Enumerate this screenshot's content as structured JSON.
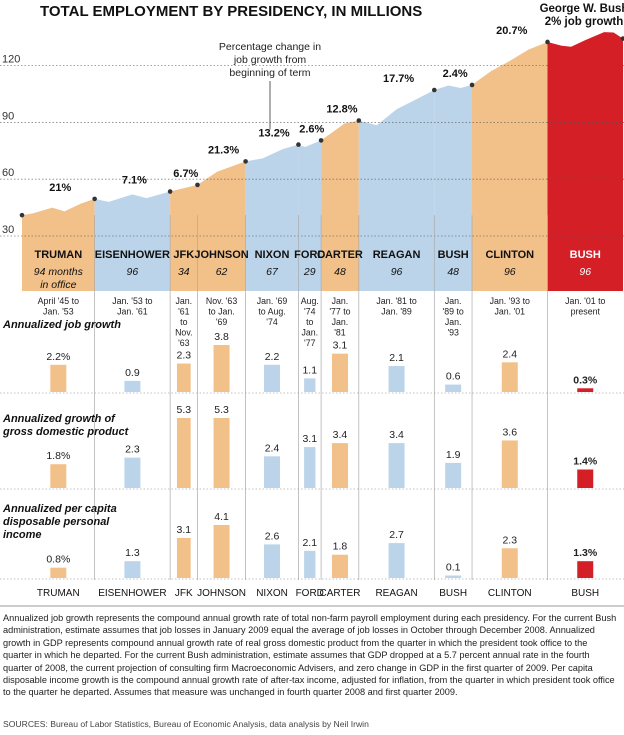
{
  "chart_data": {
    "type": "area",
    "title": "TOTAL EMPLOYMENT BY PRESIDENCY, IN MILLIONS",
    "annotation_top": "George W. Bush 2% job growth",
    "annotation_callout": "Percentage change in job growth from beginning of term",
    "y_ticks": [
      30,
      60,
      90,
      120
    ],
    "ylim": [
      24,
      140
    ],
    "employment_series": [
      {
        "date": 1945.3,
        "value": 41
      },
      {
        "date": 1946.5,
        "value": 42
      },
      {
        "date": 1948.5,
        "value": 45
      },
      {
        "date": 1949.8,
        "value": 43
      },
      {
        "date": 1951.5,
        "value": 47
      },
      {
        "date": 1953.0,
        "value": 49.6
      },
      {
        "date": 1954.5,
        "value": 48
      },
      {
        "date": 1957.0,
        "value": 52
      },
      {
        "date": 1958.5,
        "value": 50
      },
      {
        "date": 1961.0,
        "value": 53.5
      },
      {
        "date": 1963.9,
        "value": 57
      },
      {
        "date": 1966.0,
        "value": 64
      },
      {
        "date": 1969.0,
        "value": 69.4
      },
      {
        "date": 1970.8,
        "value": 71
      },
      {
        "date": 1973.0,
        "value": 76
      },
      {
        "date": 1974.6,
        "value": 78.3
      },
      {
        "date": 1975.3,
        "value": 77
      },
      {
        "date": 1977.0,
        "value": 80.5
      },
      {
        "date": 1979.5,
        "value": 89.5
      },
      {
        "date": 1981.0,
        "value": 91
      },
      {
        "date": 1982.9,
        "value": 88.5
      },
      {
        "date": 1985.0,
        "value": 97
      },
      {
        "date": 1987.0,
        "value": 102
      },
      {
        "date": 1989.0,
        "value": 107.1
      },
      {
        "date": 1990.5,
        "value": 109.5
      },
      {
        "date": 1991.8,
        "value": 108.2
      },
      {
        "date": 1993.0,
        "value": 109.8
      },
      {
        "date": 1995.0,
        "value": 117
      },
      {
        "date": 1997.0,
        "value": 122.5
      },
      {
        "date": 1999.0,
        "value": 128.5
      },
      {
        "date": 2001.0,
        "value": 132.5
      },
      {
        "date": 2002.5,
        "value": 130.5
      },
      {
        "date": 2003.5,
        "value": 130
      },
      {
        "date": 2005.0,
        "value": 133.5
      },
      {
        "date": 2007.0,
        "value": 137.7
      },
      {
        "date": 2008.0,
        "value": 137.5
      },
      {
        "date": 2009.0,
        "value": 134.3
      }
    ],
    "presidencies": [
      {
        "name": "TRUMAN",
        "start": 1945.3,
        "end": 1953.0,
        "party": "D",
        "tenure": "94 months in office",
        "tenure_note": true,
        "change": "21%",
        "dates": "April '45 to Jan. '53",
        "job": 2.2,
        "job_label": "2.2%",
        "gdp": 1.8,
        "gdp_label": "1.8%",
        "income": 0.8,
        "income_label": "0.8%"
      },
      {
        "name": "EISENHOWER",
        "start": 1953.0,
        "end": 1961.0,
        "party": "R",
        "tenure": "96",
        "change": "7.1%",
        "dates": "Jan. '53 to Jan. '61",
        "job": 0.9,
        "job_label": "0.9",
        "gdp": 2.3,
        "gdp_label": "2.3",
        "income": 1.3,
        "income_label": "1.3"
      },
      {
        "name": "JFK",
        "start": 1961.0,
        "end": 1963.9,
        "party": "D",
        "tenure": "34",
        "change": "6.7%",
        "dates": "Jan. '61 to Nov. '63",
        "job": 2.3,
        "job_label": "2.3",
        "gdp": 5.3,
        "gdp_label": "5.3",
        "income": 3.1,
        "income_label": "3.1"
      },
      {
        "name": "JOHNSON",
        "start": 1963.9,
        "end": 1969.0,
        "party": "D",
        "tenure": "62",
        "change": "21.3%",
        "dates": "Nov. '63 to Jan. '69",
        "job": 3.8,
        "job_label": "3.8",
        "gdp": 5.3,
        "gdp_label": "5.3",
        "income": 4.1,
        "income_label": "4.1"
      },
      {
        "name": "NIXON",
        "start": 1969.0,
        "end": 1974.6,
        "party": "R",
        "tenure": "67",
        "change": "13.2%",
        "dates": "Jan. '69 to Aug. '74",
        "job": 2.2,
        "job_label": "2.2",
        "gdp": 2.4,
        "gdp_label": "2.4",
        "income": 2.6,
        "income_label": "2.6"
      },
      {
        "name": "FORD",
        "start": 1974.6,
        "end": 1977.0,
        "party": "R",
        "tenure": "29",
        "change": "2.6%",
        "dates": "Aug. '74 to Jan. '77",
        "job": 1.1,
        "job_label": "1.1",
        "gdp": 3.1,
        "gdp_label": "3.1",
        "income": 2.1,
        "income_label": "2.1"
      },
      {
        "name": "CARTER",
        "start": 1977.0,
        "end": 1981.0,
        "party": "D",
        "tenure": "48",
        "change": "12.8%",
        "dates": "Jan. '77 to Jan. '81",
        "job": 3.1,
        "job_label": "3.1",
        "gdp": 3.4,
        "gdp_label": "3.4",
        "income": 1.8,
        "income_label": "1.8"
      },
      {
        "name": "REAGAN",
        "start": 1981.0,
        "end": 1989.0,
        "party": "R",
        "tenure": "96",
        "change": "17.7%",
        "dates": "Jan. '81 to Jan. '89",
        "job": 2.1,
        "job_label": "2.1",
        "gdp": 3.4,
        "gdp_label": "3.4",
        "income": 2.7,
        "income_label": "2.7"
      },
      {
        "name": "BUSH",
        "start": 1989.0,
        "end": 1993.0,
        "party": "R",
        "tenure": "48",
        "change": "2.4%",
        "dates": "Jan. '89 to Jan. '93",
        "job": 0.6,
        "job_label": "0.6",
        "gdp": 1.9,
        "gdp_label": "1.9",
        "income": 0.1,
        "income_label": "0.1"
      },
      {
        "name": "CLINTON",
        "start": 1993.0,
        "end": 2001.0,
        "party": "D",
        "tenure": "96",
        "change": "20.7%",
        "dates": "Jan. '93 to Jan. '01",
        "job": 2.4,
        "job_label": "2.4",
        "gdp": 3.6,
        "gdp_label": "3.6",
        "income": 2.3,
        "income_label": "2.3"
      },
      {
        "name": "BUSH",
        "start": 2001.0,
        "end": 2009.0,
        "party": "R",
        "highlight": true,
        "tenure": "96",
        "change": "",
        "dates": "Jan. '01 to present",
        "job": 0.3,
        "job_label": "0.3%",
        "gdp": 1.4,
        "gdp_label": "1.4%",
        "income": 1.3,
        "income_label": "1.3%"
      }
    ],
    "panels": [
      {
        "key": "job",
        "title": "Annualized job growth"
      },
      {
        "key": "gdp",
        "title": "Annualized growth of gross domestic product"
      },
      {
        "key": "income",
        "title": "Annualized per capita disposable personal income"
      }
    ],
    "colors": {
      "democrat": "#f2c089",
      "republican": "#bcd4ea",
      "highlight": "#d41f26"
    }
  },
  "notes": "Annualized job growth represents the compound annual growth rate of total non-farm payroll employment during each presidency. For the current Bush administration, estimate assumes that job losses in January 2009 equal the average of job losses in October through December 2008. Annualized growth in GDP represents compound annual growth rate of real gross domestic product from the quarter in which the president took office to the quarter in which he departed. For the current Bush administration, estimate assumes that GDP dropped at a 5.7 percent annual rate in the fourth quarter of 2008, the current projection of consulting firm Macroeconomic Advisers, and zero change in GDP in the first quarter of 2009. Per capita disposable income growth is the compound annual growth rate of after-tax income, adjusted for inflation, from the quarter in which president took office to the quarter he departed. Assumes that measure was unchanged in fourth quarter 2008 and first quarter 2009.",
  "sources": "SOURCES: Bureau of Labor Statistics, Bureau of Economic Analysis, data analysis by Neil Irwin"
}
